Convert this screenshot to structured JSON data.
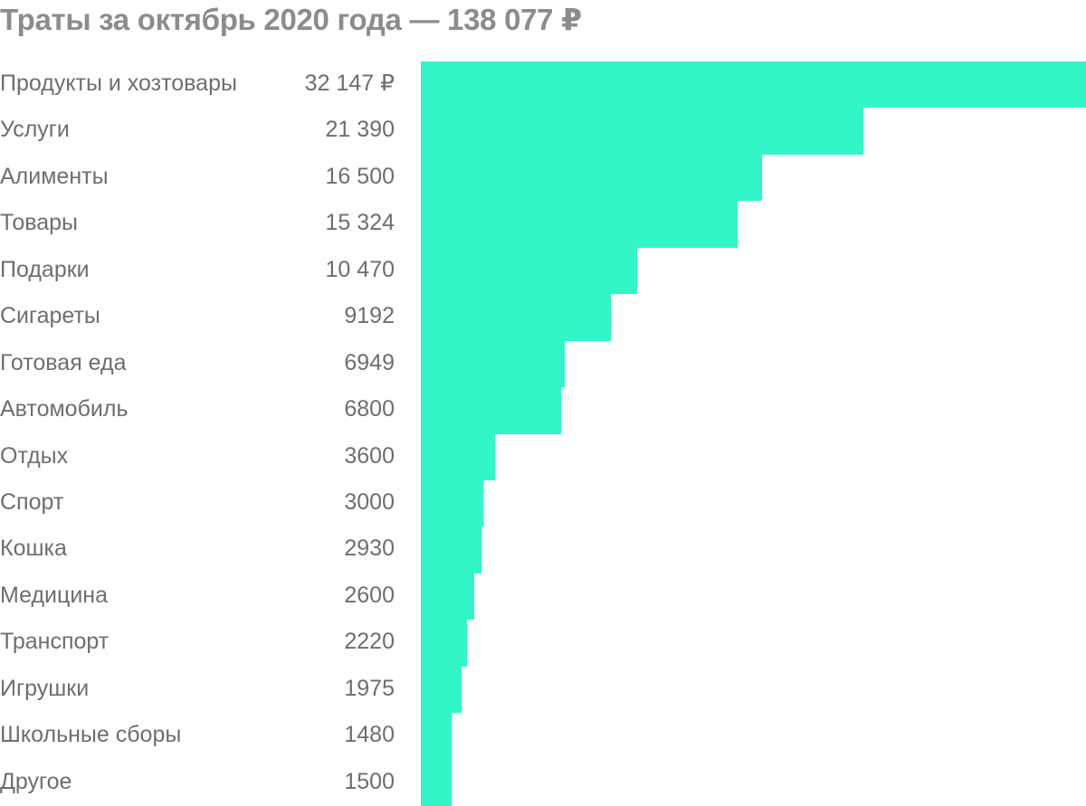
{
  "colors": {
    "bar": "#32f5c8",
    "text": "#6e6e6e",
    "title": "#8c8c8c"
  },
  "chart_data": {
    "type": "bar",
    "orientation": "horizontal",
    "title": "Траты за октябрь 2020 года — 138 077 ₽",
    "categories": [
      "Продукты и хозтовары",
      "Услуги",
      "Алименты",
      "Товары",
      "Подарки",
      "Сигареты",
      "Готовая еда",
      "Автомобиль",
      "Отдых",
      "Спорт",
      "Кошка",
      "Медицина",
      "Транспорт",
      "Игрушки",
      "Школьные сборы",
      "Другое"
    ],
    "values": [
      32147,
      21390,
      16500,
      15324,
      10470,
      9192,
      6949,
      6800,
      3600,
      3000,
      2930,
      2600,
      2220,
      1975,
      1480,
      1500
    ],
    "value_labels": [
      "32 147 ₽",
      "21 390",
      "16 500",
      "15 324",
      "10 470",
      "9192",
      "6949",
      "6800",
      "3600",
      "3000",
      "2930",
      "2600",
      "2220",
      "1975",
      "1480",
      "1500"
    ],
    "xlim": [
      0,
      32147
    ],
    "grid": false,
    "legend": "none"
  }
}
